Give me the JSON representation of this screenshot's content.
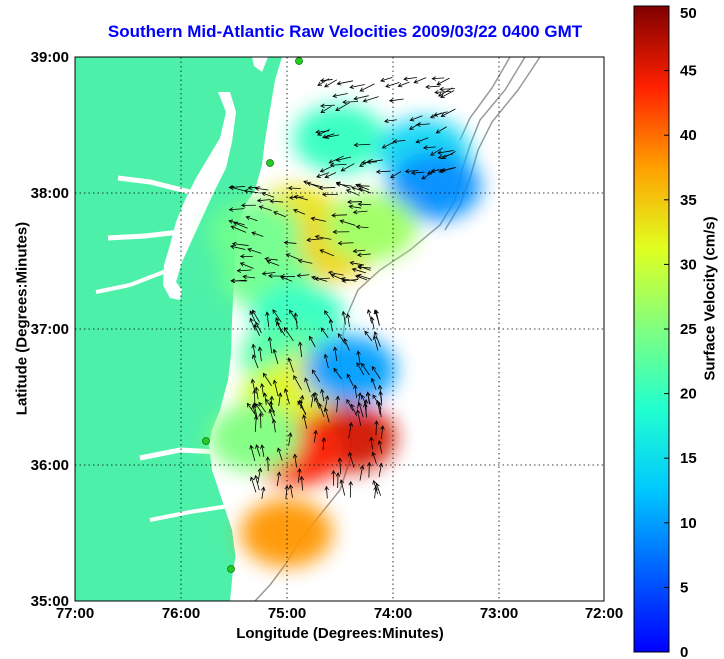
{
  "chart_data": {
    "type": "heatmap",
    "title": "Southern Mid-Atlantic Raw Velocities 2009/03/22 0400 GMT",
    "xlabel": "Longitude (Degrees:Minutes)",
    "ylabel": "Latitude (Degrees:Minutes)",
    "colorbar_label": "Surface Velocity (cm/s)",
    "x_ticks": [
      "77:00",
      "76:00",
      "75:00",
      "74:00",
      "73:00",
      "72:00"
    ],
    "y_ticks": [
      "39:00",
      "38:00",
      "37:00",
      "36:00",
      "35:00"
    ],
    "colorbar_ticks": [
      "50",
      "45",
      "40",
      "35",
      "30",
      "25",
      "20",
      "15",
      "10",
      "5",
      "0"
    ],
    "xlim": [
      -77,
      -72
    ],
    "ylim": [
      35,
      39
    ],
    "clim": [
      0,
      50
    ],
    "grid": true,
    "colormap": "jet",
    "colors": {
      "land": "#4df0a8",
      "title": "#0000ff",
      "bathymetry": "#9a9a9a",
      "station": "#22cc22"
    },
    "velocity_regions": [
      {
        "lon": -74.5,
        "lat": 38.4,
        "speed": 20
      },
      {
        "lon": -73.7,
        "lat": 38.3,
        "speed": 14
      },
      {
        "lon": -73.6,
        "lat": 38.05,
        "speed": 9
      },
      {
        "lon": -74.9,
        "lat": 37.8,
        "speed": 33
      },
      {
        "lon": -74.6,
        "lat": 37.6,
        "speed": 34
      },
      {
        "lon": -75.3,
        "lat": 37.7,
        "speed": 24
      },
      {
        "lon": -74.2,
        "lat": 37.75,
        "speed": 27
      },
      {
        "lon": -75.2,
        "lat": 37.4,
        "speed": 24
      },
      {
        "lon": -74.9,
        "lat": 37.1,
        "speed": 20
      },
      {
        "lon": -75.0,
        "lat": 36.8,
        "speed": 22
      },
      {
        "lon": -75.0,
        "lat": 36.5,
        "speed": 30
      },
      {
        "lon": -74.7,
        "lat": 36.6,
        "speed": 32
      },
      {
        "lon": -74.4,
        "lat": 36.7,
        "speed": 10
      },
      {
        "lon": -74.4,
        "lat": 36.2,
        "speed": 46
      },
      {
        "lon": -74.9,
        "lat": 36.1,
        "speed": 44
      },
      {
        "lon": -75.3,
        "lat": 36.2,
        "speed": 25
      },
      {
        "lon": -75.0,
        "lat": 35.5,
        "speed": 38
      }
    ]
  }
}
